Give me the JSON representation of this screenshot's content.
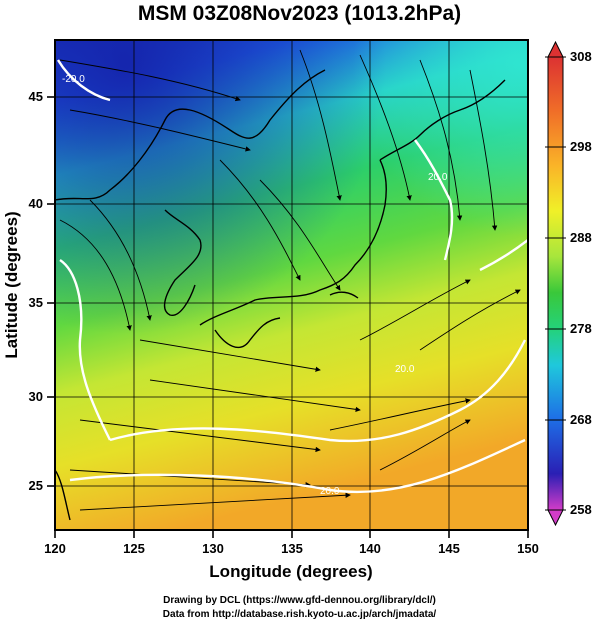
{
  "title": "MSM 03Z08Nov2023 (1013.2hPa)",
  "axes": {
    "xlabel": "Longitude (degrees)",
    "ylabel": "Latitude  (degrees)",
    "xticks": [
      "120",
      "125",
      "130",
      "135",
      "140",
      "145",
      "150"
    ],
    "yticks": [
      "25",
      "30",
      "35",
      "40",
      "45"
    ]
  },
  "colorbar": {
    "ticks": [
      "308",
      "298",
      "288",
      "278",
      "268",
      "258"
    ],
    "range": [
      258,
      308
    ],
    "colors": [
      "#d23cc8",
      "#2a1fb4",
      "#1e6ee6",
      "#1fc8dc",
      "#24d27a",
      "#3ac83a",
      "#a8e63c",
      "#f0f028",
      "#fab428",
      "#f06e28",
      "#dc3232"
    ]
  },
  "contours": {
    "labels": [
      "-20.0",
      "20.0",
      "20.0",
      "20.0"
    ]
  },
  "credits": {
    "line1": "Drawing by DCL (https://www.gfd-dennou.org/library/dcl/)",
    "line2": "Data from http://database.rish.kyoto-u.ac.jp/arch/jmadata/"
  }
}
